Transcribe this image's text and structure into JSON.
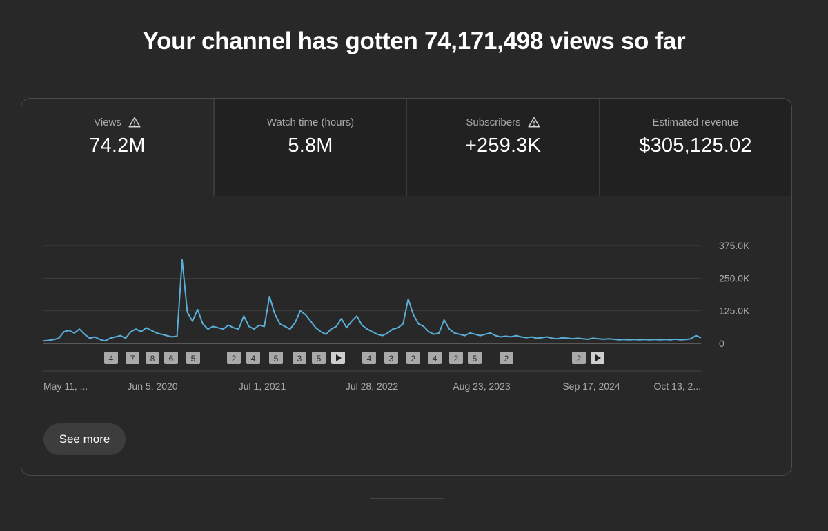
{
  "headline": "Your channel has gotten 74,171,498 views so far",
  "metrics": [
    {
      "label": "Views",
      "value": "74.2M",
      "warning": true
    },
    {
      "label": "Watch time (hours)",
      "value": "5.8M",
      "warning": false
    },
    {
      "label": "Subscribers",
      "value": "+259.3K",
      "warning": true
    },
    {
      "label": "Estimated revenue",
      "value": "$305,125.02",
      "warning": false
    }
  ],
  "icons": {
    "warning": "warning-triangle-icon",
    "play": "play-icon"
  },
  "colors": {
    "line": "#5aafd9",
    "background": "#282828",
    "accent_tile": "#3d3d3d"
  },
  "chart_data": {
    "type": "line",
    "title": "",
    "xlabel": "",
    "ylabel": "",
    "ylim": [
      0,
      375000
    ],
    "yticks": [
      "375.0K",
      "250.0K",
      "125.0K",
      "0"
    ],
    "ytick_values": [
      375000,
      250000,
      125000,
      0
    ],
    "xticks": [
      "May 11, ...",
      "Jun 5, 2020",
      "Jul 1, 2021",
      "Jul 28, 2022",
      "Aug 23, 2023",
      "Sep 17, 2024",
      "Oct 13, 2..."
    ],
    "grid": true,
    "series": [
      {
        "values": [
          10000,
          12000,
          15000,
          20000,
          45000,
          50000,
          40000,
          55000,
          35000,
          20000,
          25000,
          15000,
          10000,
          20000,
          25000,
          30000,
          20000,
          45000,
          55000,
          45000,
          60000,
          50000,
          40000,
          35000,
          30000,
          25000,
          28000,
          320000,
          120000,
          85000,
          130000,
          75000,
          55000,
          65000,
          60000,
          55000,
          70000,
          60000,
          55000,
          105000,
          65000,
          55000,
          70000,
          65000,
          180000,
          115000,
          75000,
          65000,
          55000,
          80000,
          125000,
          110000,
          85000,
          60000,
          45000,
          35000,
          55000,
          65000,
          95000,
          60000,
          85000,
          105000,
          70000,
          55000,
          45000,
          35000,
          30000,
          40000,
          55000,
          60000,
          75000,
          170000,
          110000,
          75000,
          65000,
          45000,
          35000,
          40000,
          90000,
          55000,
          40000,
          35000,
          30000,
          40000,
          35000,
          30000,
          35000,
          40000,
          30000,
          25000,
          28000,
          25000,
          30000,
          25000,
          22000,
          25000,
          20000,
          22000,
          25000,
          20000,
          18000,
          22000,
          20000,
          18000,
          20000,
          18000,
          16000,
          20000,
          18000,
          16000,
          18000,
          16000,
          14000,
          15000,
          14000,
          15000,
          14000,
          15000,
          14000,
          15000,
          14000,
          15000,
          14000,
          16000,
          14000,
          15000,
          18000,
          30000,
          22000
        ]
      }
    ],
    "annotation_markers": [
      {
        "label": "4"
      },
      {
        "label": "7"
      },
      {
        "label": "8"
      },
      {
        "label": "6"
      },
      {
        "label": "5"
      },
      {
        "label": "2"
      },
      {
        "label": "4"
      },
      {
        "label": "5"
      },
      {
        "label": "3"
      },
      {
        "label": "5"
      },
      {
        "label": "4"
      },
      {
        "label": "3"
      },
      {
        "label": "2"
      },
      {
        "label": "4"
      },
      {
        "label": "2"
      },
      {
        "label": "5"
      },
      {
        "label": "2"
      },
      {
        "label": "2"
      }
    ]
  },
  "see_more": "See more"
}
